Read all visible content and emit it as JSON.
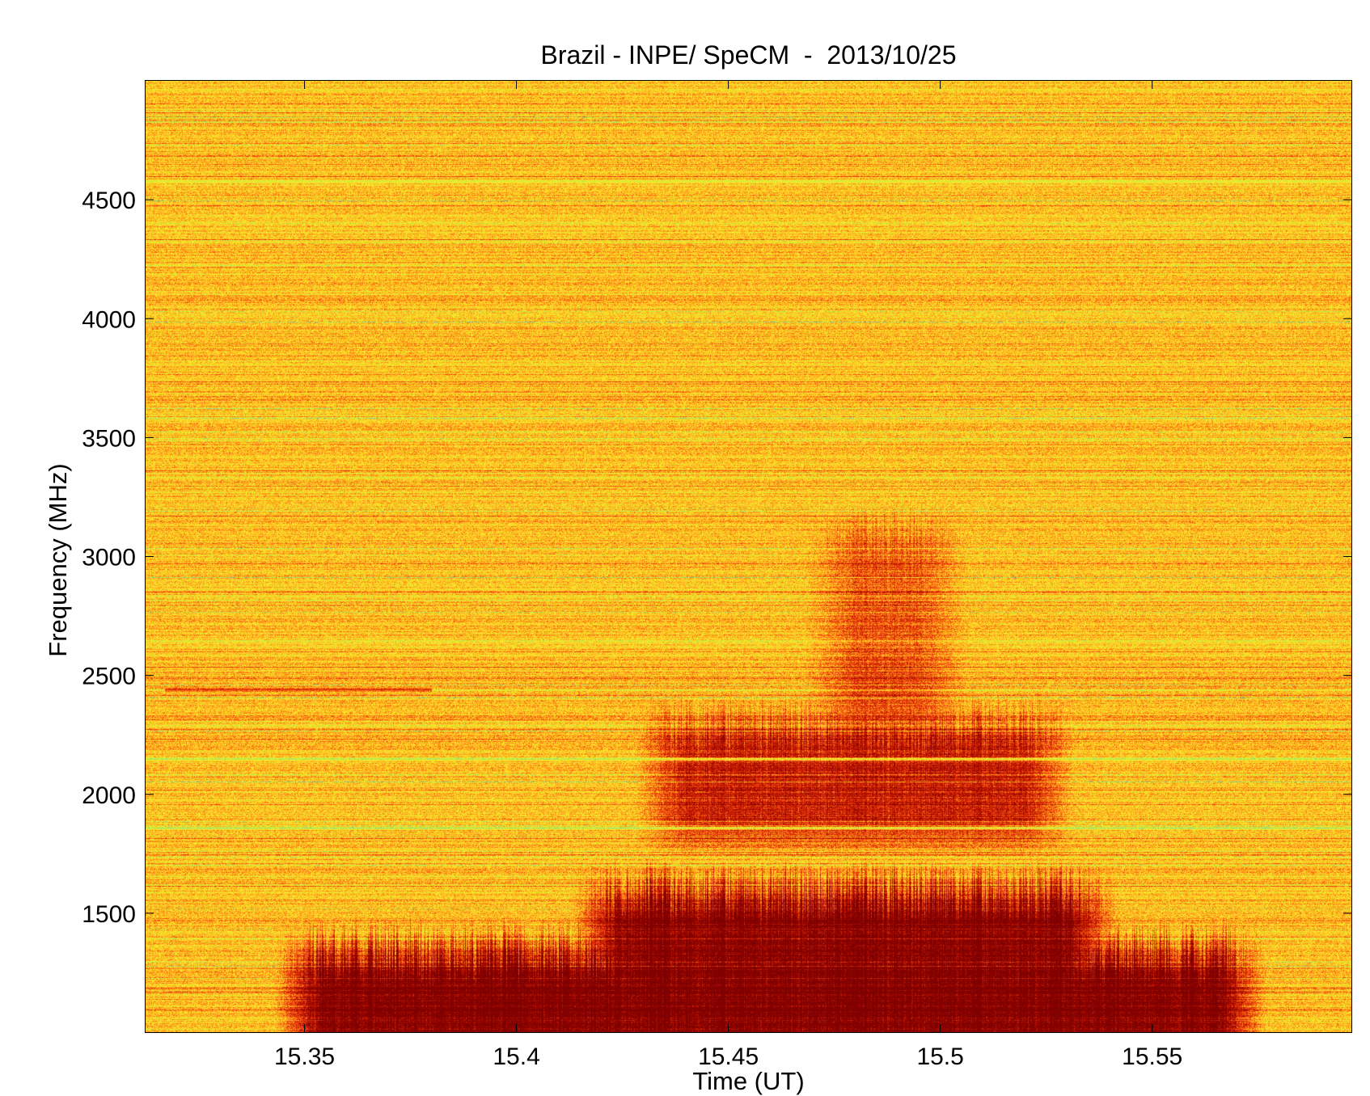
{
  "chart_data": {
    "type": "heatmap",
    "title": "Brazil - INPE/ SpeCM  -  2013/10/25",
    "xlabel": "Time (UT)",
    "ylabel": "Frequency (MHz)",
    "xlim": [
      15.3125,
      15.597
    ],
    "ylim": [
      1000,
      5000
    ],
    "x_ticks": [
      15.35,
      15.4,
      15.45,
      15.5,
      15.55
    ],
    "x_tick_labels": [
      "15.35",
      "15.4",
      "15.45",
      "15.5",
      "15.55"
    ],
    "y_ticks": [
      1500,
      2000,
      2500,
      3000,
      3500,
      4000,
      4500
    ],
    "y_tick_labels": [
      "1500",
      "2000",
      "2500",
      "3000",
      "3500",
      "4000",
      "4500"
    ],
    "grid": false,
    "colormap": [
      "#55c8c0",
      "#c8f03c",
      "#ffe628",
      "#ffa31e",
      "#ee3a0a",
      "#b30f00",
      "#7f0000"
    ],
    "background_intensity": 0.42,
    "features": [
      {
        "kind": "burst",
        "t_start": 15.355,
        "t_end": 15.565,
        "f_low": 1000,
        "f_high": 1250,
        "intensity": 1.0
      },
      {
        "kind": "burst",
        "t_start": 15.425,
        "t_end": 15.53,
        "f_low": 1000,
        "f_high": 1500,
        "intensity": 0.95
      },
      {
        "kind": "burst",
        "t_start": 15.44,
        "t_end": 15.52,
        "f_low": 1900,
        "f_high": 2200,
        "intensity": 0.6
      },
      {
        "kind": "burst",
        "t_start": 15.48,
        "t_end": 15.495,
        "f_low": 2200,
        "f_high": 3000,
        "intensity": 0.35
      },
      {
        "kind": "band",
        "f": 1860,
        "intensity": 0.05
      },
      {
        "kind": "band",
        "f": 2150,
        "intensity": 0.15
      },
      {
        "kind": "band",
        "f": 2440,
        "intensity": 0.85,
        "t_start": 15.317,
        "t_end": 15.38
      },
      {
        "kind": "band",
        "f": 4580,
        "intensity": 0.15
      }
    ]
  }
}
